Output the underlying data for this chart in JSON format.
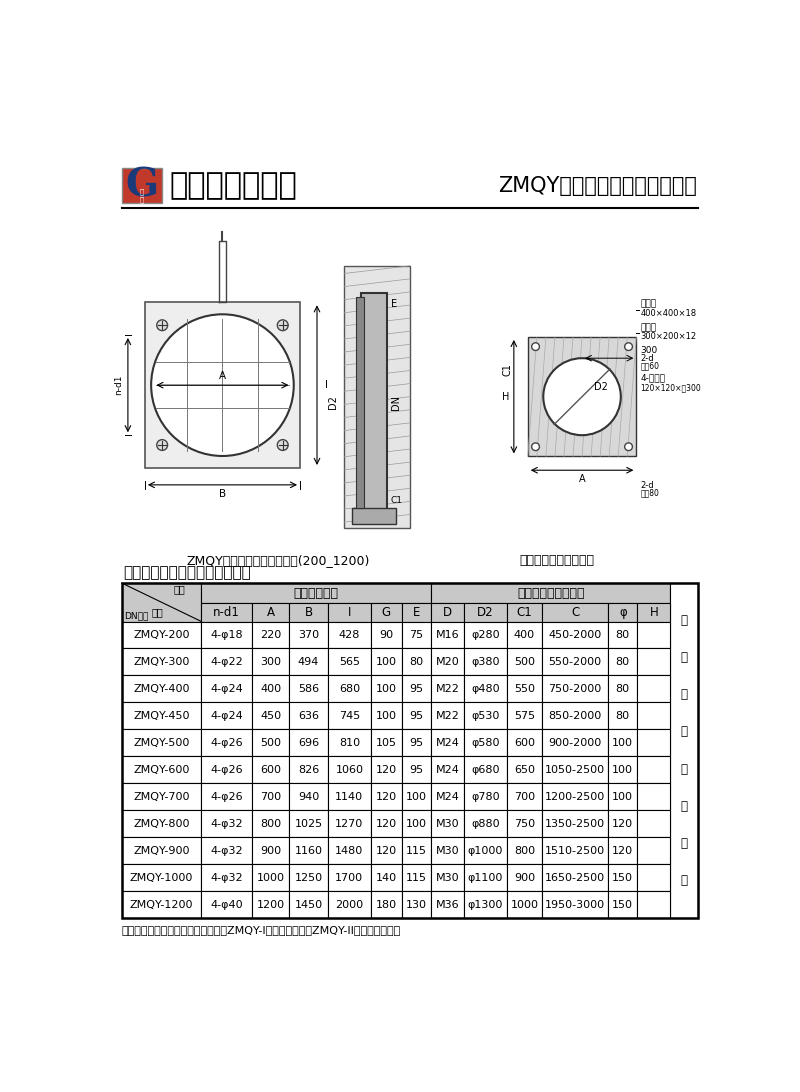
{
  "title_company": "永嘉县嘉鸿阀门",
  "title_product": "ZMQY型附壁式铸铁镶铜圆闸门",
  "table_title": "外形及预埋件和预留孔尺寸表：",
  "drawing_caption_left": "ZMQY型墙式镶铜铸铁圆闸门(200_1200)",
  "drawing_caption_right": "预埋件及预留孔基础图",
  "header_row1_left": "外形结构尺寸",
  "header_row1_right": "预埋件及预留孔尺寸",
  "header_row2": [
    "n-d1",
    "A",
    "B",
    "I",
    "G",
    "E",
    "D",
    "D2",
    "C1",
    "C",
    "φ",
    "H"
  ],
  "right_note": [
    "根",
    "据",
    "用",
    "户",
    "要",
    "求",
    "确",
    "定"
  ],
  "footnote": "注：本闸门的闸板有结构为平板形（ZMQY-I），如需挠形（ZMQY-II）请另外注明。",
  "rows": [
    [
      "ZMQY-200",
      "4-φ18",
      "220",
      "370",
      "428",
      "90",
      "75",
      "M16",
      "φ280",
      "400",
      "450-2000",
      "80"
    ],
    [
      "ZMQY-300",
      "4-φ22",
      "300",
      "494",
      "565",
      "100",
      "80",
      "M20",
      "φ380",
      "500",
      "550-2000",
      "80"
    ],
    [
      "ZMQY-400",
      "4-φ24",
      "400",
      "586",
      "680",
      "100",
      "95",
      "M22",
      "φ480",
      "550",
      "750-2000",
      "80"
    ],
    [
      "ZMQY-450",
      "4-φ24",
      "450",
      "636",
      "745",
      "100",
      "95",
      "M22",
      "φ530",
      "575",
      "850-2000",
      "80"
    ],
    [
      "ZMQY-500",
      "4-φ26",
      "500",
      "696",
      "810",
      "105",
      "95",
      "M24",
      "φ580",
      "600",
      "900-2000",
      "100"
    ],
    [
      "ZMQY-600",
      "4-φ26",
      "600",
      "826",
      "1060",
      "120",
      "95",
      "M24",
      "φ680",
      "650",
      "1050-2500",
      "100"
    ],
    [
      "ZMQY-700",
      "4-φ26",
      "700",
      "940",
      "1140",
      "120",
      "100",
      "M24",
      "φ780",
      "700",
      "1200-2500",
      "100"
    ],
    [
      "ZMQY-800",
      "4-φ32",
      "800",
      "1025",
      "1270",
      "120",
      "100",
      "M30",
      "φ880",
      "750",
      "1350-2500",
      "120"
    ],
    [
      "ZMQY-900",
      "4-φ32",
      "900",
      "1160",
      "1480",
      "120",
      "115",
      "M30",
      "φ1000",
      "800",
      "1510-2500",
      "120"
    ],
    [
      "ZMQY-1000",
      "4-φ32",
      "1000",
      "1250",
      "1700",
      "140",
      "115",
      "M30",
      "φ1100",
      "900",
      "1650-2500",
      "150"
    ],
    [
      "ZMQY-1200",
      "4-φ40",
      "1200",
      "1450",
      "2000",
      "180",
      "130",
      "M36",
      "φ1300",
      "1000",
      "1950-3000",
      "150"
    ]
  ],
  "bg_color": "#ffffff",
  "header_bg": "#c8c8c8",
  "table_border": "#000000",
  "logo_bg": "#c0392b",
  "logo_inner_color": "#1a3a7a"
}
